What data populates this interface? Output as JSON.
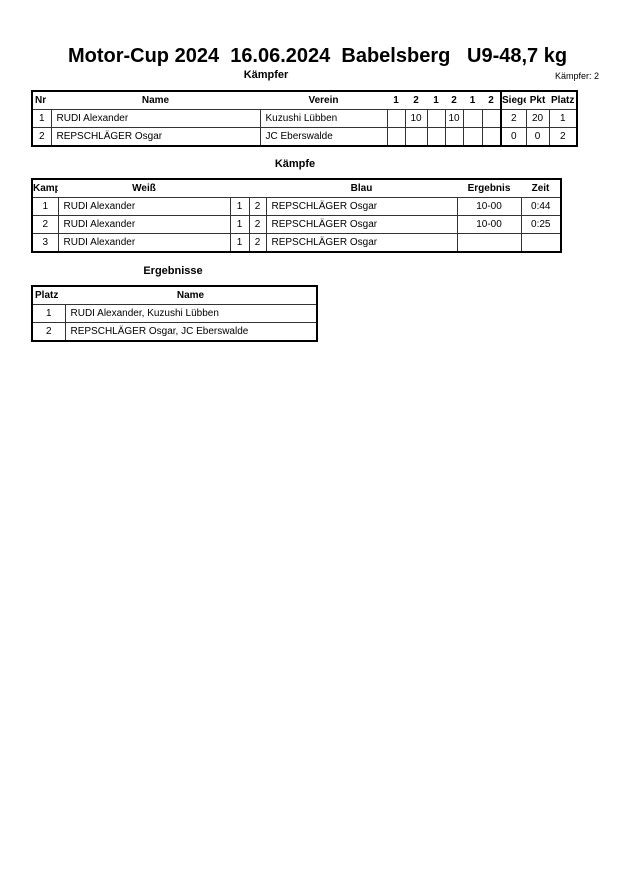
{
  "title": "Motor-Cup 2024  16.06.2024  Babelsberg   U9-48,7 kg",
  "fighters_section": {
    "heading": "Kämpfer",
    "count_label": "Kämpfer: 2",
    "headers": [
      "Nr",
      "Name",
      "Verein",
      "1",
      "2",
      "1",
      "2",
      "1",
      "2",
      "Siege",
      "Pkt",
      "Platz"
    ],
    "rows": [
      {
        "nr": "1",
        "name": "RUDI Alexander",
        "verein": "Kuzushi Lübben",
        "scores": [
          "",
          "10",
          "",
          "10",
          "",
          ""
        ],
        "siege": "2",
        "pkt": "20",
        "platz": "1"
      },
      {
        "nr": "2",
        "name": "REPSCHLÄGER Osgar",
        "verein": "JC Eberswalde",
        "scores": [
          "",
          "",
          "",
          "",
          "",
          ""
        ],
        "siege": "0",
        "pkt": "0",
        "platz": "2"
      }
    ]
  },
  "fights_section": {
    "heading": "Kämpfe",
    "headers": [
      "Kampf",
      "Weiß",
      "Blau",
      "Ergebnis",
      "Zeit"
    ],
    "rows": [
      {
        "kampf": "1",
        "weiss": "RUDI Alexander",
        "w": "1",
        "b": "2",
        "blau": "REPSCHLÄGER Osgar",
        "ergebnis": "10-00",
        "zeit": "0:44"
      },
      {
        "kampf": "2",
        "weiss": "RUDI Alexander",
        "w": "1",
        "b": "2",
        "blau": "REPSCHLÄGER Osgar",
        "ergebnis": "10-00",
        "zeit": "0:25"
      },
      {
        "kampf": "3",
        "weiss": "RUDI Alexander",
        "w": "1",
        "b": "2",
        "blau": "REPSCHLÄGER Osgar",
        "ergebnis": "",
        "zeit": ""
      }
    ]
  },
  "results_section": {
    "heading": "Ergebnisse",
    "headers": [
      "Platz",
      "Name"
    ],
    "rows": [
      {
        "platz": "1",
        "name": "RUDI Alexander, Kuzushi Lübben"
      },
      {
        "platz": "2",
        "name": "REPSCHLÄGER Osgar, JC Eberswalde"
      }
    ]
  }
}
